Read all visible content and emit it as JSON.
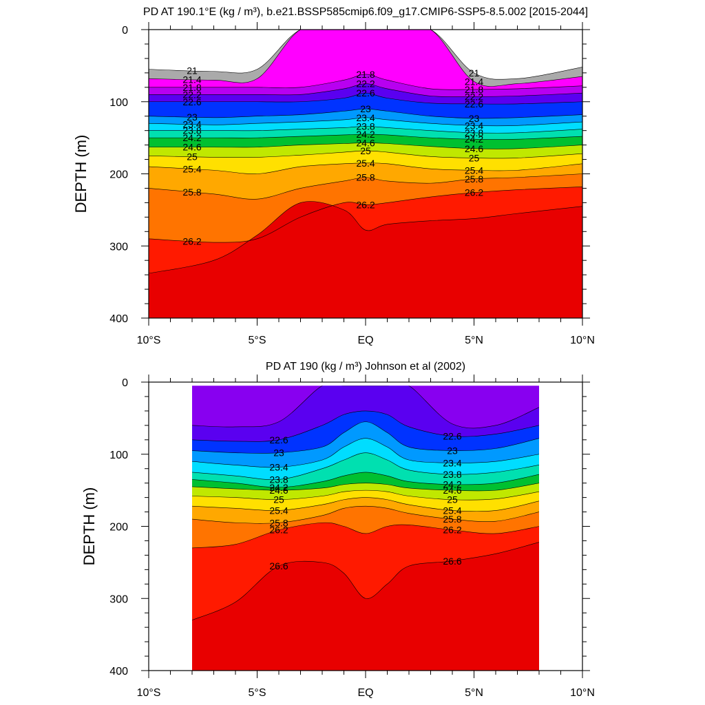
{
  "chart_data": [
    {
      "type": "contour",
      "title": "PD AT 190.1°E (kg / m³), b.e21.BSSP585cmip6.f09_g17.CMIP6-SSP5-8.5.002 [2015-2044]",
      "ylabel": "DEPTH (m)",
      "xlabel": "",
      "xlim": [
        -10,
        10
      ],
      "ylim": [
        400,
        0
      ],
      "x_tick_labels": [
        "10°S",
        "5°S",
        "EQ",
        "5°N",
        "10°N"
      ],
      "y_tick_labels": [
        "0",
        "100",
        "200",
        "300",
        "400"
      ],
      "contour_interval": 0.2,
      "contour_labels": [
        "21",
        "21.4",
        "21.8",
        "22.2",
        "22.6",
        "23",
        "23.4",
        "23.8",
        "24.2",
        "24.6",
        "25",
        "25.4",
        "25.8",
        "26.2"
      ],
      "level_depths_at_lat": {
        "lat": [
          -10,
          -7,
          -5,
          -3,
          -1,
          0,
          1,
          3,
          5,
          7,
          10
        ],
        "21.0": [
          55,
          58,
          55,
          0,
          0,
          0,
          0,
          0,
          60,
          68,
          52
        ],
        "21.4": [
          68,
          70,
          68,
          0,
          0,
          0,
          0,
          0,
          72,
          75,
          65
        ],
        "21.8": [
          80,
          80,
          80,
          80,
          70,
          62,
          70,
          82,
          83,
          82,
          78
        ],
        "22.2": [
          90,
          90,
          90,
          90,
          82,
          75,
          82,
          92,
          93,
          92,
          88
        ],
        "22.6": [
          100,
          100,
          100,
          100,
          95,
          88,
          95,
          102,
          103,
          103,
          100
        ],
        "23.0": [
          120,
          122,
          120,
          118,
          113,
          110,
          113,
          120,
          123,
          122,
          118
        ],
        "23.4": [
          130,
          132,
          130,
          128,
          125,
          122,
          125,
          130,
          133,
          133,
          128
        ],
        "23.8": [
          140,
          140,
          140,
          138,
          136,
          134,
          136,
          140,
          143,
          143,
          138
        ],
        "24.2": [
          150,
          150,
          150,
          148,
          146,
          145,
          146,
          150,
          152,
          152,
          148
        ],
        "24.6": [
          163,
          163,
          163,
          160,
          158,
          157,
          158,
          162,
          165,
          165,
          160
        ],
        "25.0": [
          175,
          177,
          177,
          174,
          170,
          168,
          170,
          176,
          178,
          178,
          172
        ],
        "25.4": [
          190,
          195,
          200,
          190,
          186,
          185,
          186,
          193,
          195,
          195,
          186
        ],
        "25.8": [
          220,
          228,
          235,
          220,
          210,
          205,
          210,
          213,
          207,
          205,
          200
        ],
        "26.2": [
          290,
          295,
          290,
          260,
          240,
          243,
          240,
          232,
          226,
          222,
          218
        ],
        "26.6": [
          338,
          320,
          285,
          240,
          250,
          278,
          270,
          265,
          262,
          255,
          245
        ]
      }
    },
    {
      "type": "contour",
      "title": "PD AT 190 (kg / m³) Johnson et al (2002)",
      "ylabel": "DEPTH (m)",
      "xlabel": "",
      "xlim": [
        -10,
        10
      ],
      "ylim": [
        400,
        0
      ],
      "data_x_range": [
        -8,
        8
      ],
      "data_top_depth": 5,
      "x_tick_labels": [
        "10°S",
        "5°S",
        "EQ",
        "5°N",
        "10°N"
      ],
      "y_tick_labels": [
        "0",
        "100",
        "200",
        "300",
        "400"
      ],
      "contour_interval": 0.2,
      "contour_labels": [
        "22.6",
        "23",
        "23.4",
        "23.8",
        "24.2",
        "24.6",
        "25",
        "25.4",
        "25.8",
        "26.2",
        "26.6"
      ],
      "level_depths_at_lat": {
        "lat": [
          -8,
          -6,
          -4,
          -2,
          -1,
          0,
          1,
          2,
          4,
          6,
          8
        ],
        "22.2": [
          60,
          62,
          55,
          5,
          5,
          5,
          5,
          5,
          58,
          60,
          35
        ],
        "22.6": [
          80,
          82,
          80,
          60,
          45,
          40,
          45,
          62,
          75,
          72,
          60
        ],
        "23.0": [
          95,
          98,
          98,
          90,
          70,
          55,
          70,
          90,
          95,
          92,
          78
        ],
        "23.4": [
          110,
          115,
          118,
          108,
          90,
          78,
          90,
          108,
          112,
          110,
          100
        ],
        "23.8": [
          125,
          130,
          135,
          120,
          108,
          98,
          108,
          122,
          128,
          125,
          115
        ],
        "24.2": [
          135,
          140,
          146,
          138,
          130,
          125,
          130,
          138,
          142,
          140,
          128
        ],
        "24.6": [
          145,
          148,
          150,
          147,
          142,
          140,
          142,
          147,
          150,
          150,
          140
        ],
        "25.0": [
          158,
          160,
          163,
          158,
          152,
          150,
          152,
          158,
          163,
          162,
          152
        ],
        "25.4": [
          172,
          175,
          178,
          170,
          163,
          160,
          163,
          170,
          178,
          178,
          165
        ],
        "25.8": [
          190,
          195,
          195,
          185,
          175,
          172,
          175,
          182,
          190,
          193,
          180
        ],
        "26.2": [
          230,
          225,
          205,
          195,
          200,
          210,
          200,
          198,
          205,
          210,
          200
        ],
        "26.6": [
          330,
          305,
          255,
          250,
          265,
          300,
          280,
          255,
          248,
          238,
          222
        ]
      }
    }
  ]
}
